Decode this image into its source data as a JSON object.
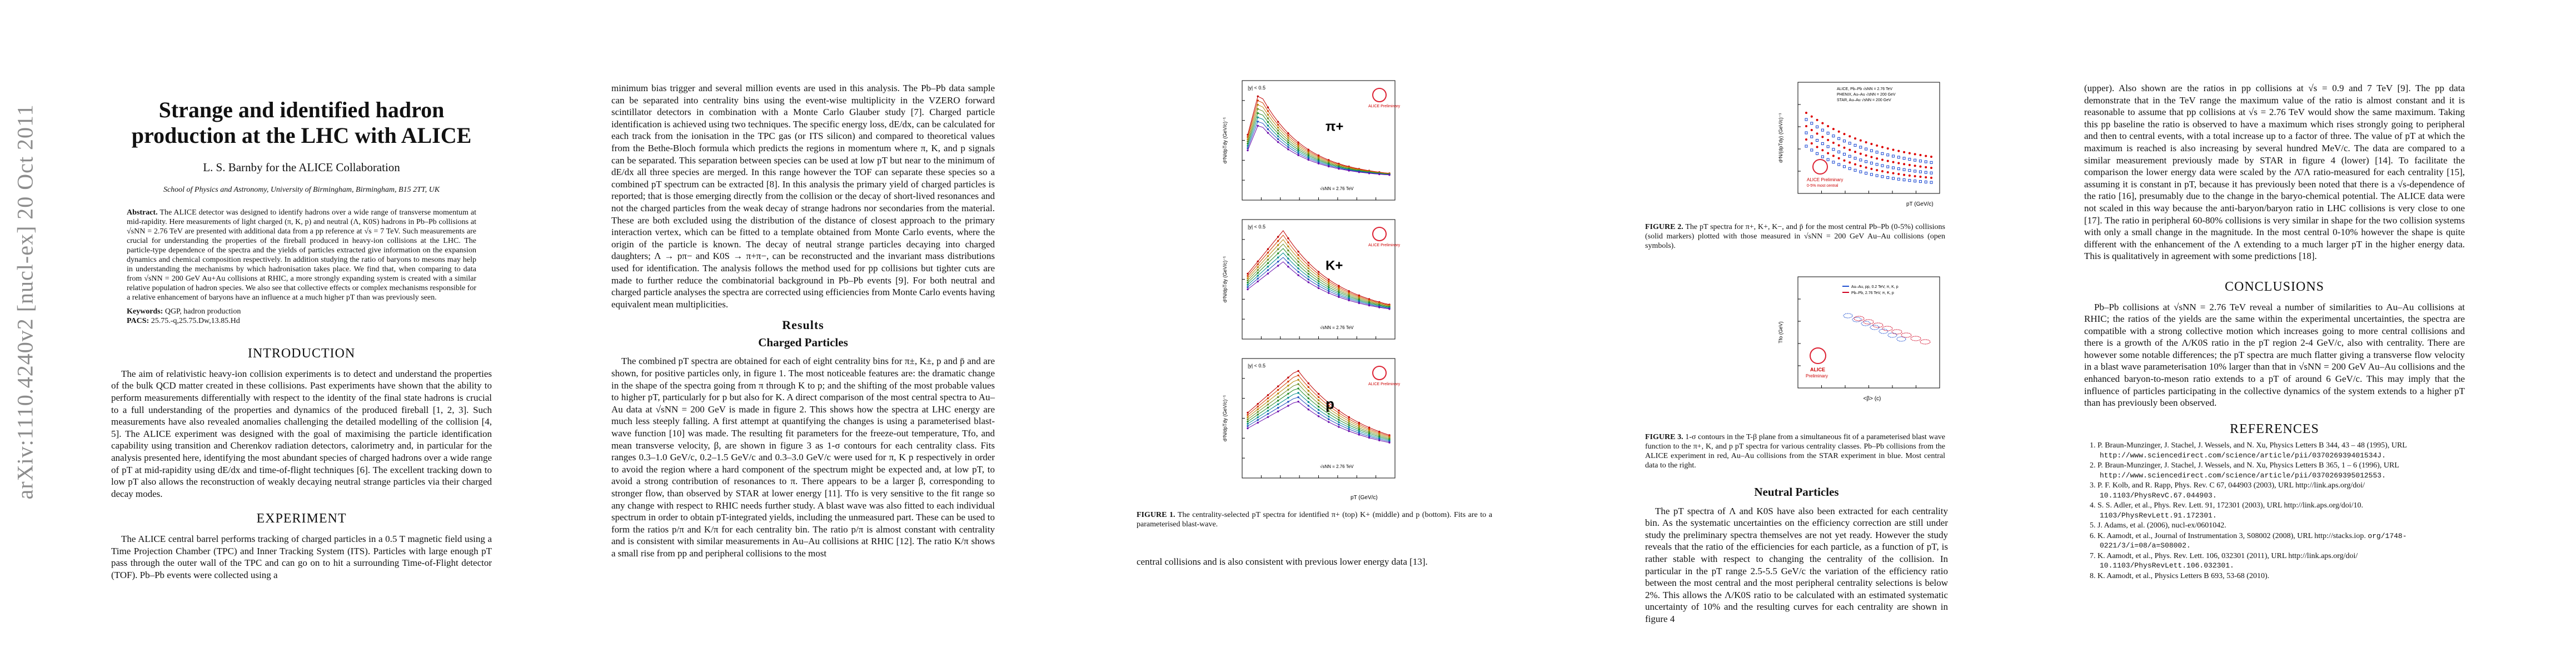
{
  "margin": {
    "arxiv_id": "arXiv:1110.4240v2  [nucl-ex]  20 Oct 2011"
  },
  "header": {
    "title": "Strange and identified hadron production at the LHC with ALICE",
    "author": "L. S. Barnby for the ALICE Collaboration",
    "affiliation": "School of Physics and Astronomy, University of Birmingham, Birmingham, B15 2TT, UK"
  },
  "abstract": {
    "label": "Abstract.",
    "text": "The ALICE detector was designed to identify hadrons over a wide range of transverse momentum at mid-rapidity. Here measurements of light charged (π, K, p) and neutral (Λ, K0S) hadrons in Pb–Pb collisions at √sNN = 2.76 TeV are presented with additional data from a pp reference at √s = 7 TeV. Such measurements are crucial for understanding the properties of the fireball produced in heavy-ion collisions at the LHC. The particle-type dependence of the spectra and the yields of particles extracted give information on the expansion dynamics and chemical composition respectively. In addition studying the ratio of baryons to mesons may help in understanding the mechanisms by which hadronisation takes place. We find that, when comparing to data from √sNN = 200 GeV Au+Au collisions at RHIC, a more strongly expanding system is created with a similar relative population of hadron species. We also see that collective effects or complex mechanisms responsible for a relative enhancement of baryons have an influence at a much higher pT than was previously seen.",
    "keywords_label": "Keywords:",
    "keywords": "QGP, hadron production",
    "pacs_label": "PACS:",
    "pacs": "25.75.-q,25.75.Dw,13.85.Hd"
  },
  "introduction": {
    "heading": "INTRODUCTION",
    "text": "The aim of relativistic heavy-ion collision experiments is to detect and understand the properties of the bulk QCD matter created in these collisions. Past experiments have shown that the ability to perform measurements differentially with respect to the identity of the final state hadrons is crucial to a full understanding of the properties and dynamics of the produced fireball [1, 2, 3]. Such measurements have also revealed anomalies challenging the detailed modelling of the collision [4, 5]. The ALICE experiment was designed with the goal of maximising the particle identification capability using transition and Cherenkov radiation detectors, calorimetry and, in particular for the analysis presented here, identifying the most abundant species of charged hadrons over a wide range of pT at mid-rapidity using dE/dx and time-of-flight techniques [6]. The excellent tracking down to low pT also allows the reconstruction of weakly decaying neutral strange particles via their charged decay modes."
  },
  "experiment": {
    "heading": "EXPERIMENT",
    "text": "The ALICE central barrel performs tracking of charged particles in a 0.5 T magnetic field using a Time Projection Chamber (TPC) and Inner Tracking System (ITS). Particles with large enough pT pass through the outer wall of the TPC and can go on to hit a surrounding Time-of-Flight detector (TOF). Pb–Pb events were collected using a"
  },
  "col2": {
    "text1": "minimum bias trigger and several million events are used in this analysis. The Pb–Pb data sample can be separated into centrality bins using the event-wise multiplicity in the VZERO forward scintillator detectors in combination with a Monte Carlo Glauber study [7]. Charged particle identification is achieved using two techniques. The specific energy loss, dE/dx, can be calculated for each track from the ionisation in the TPC gas (or ITS silicon) and compared to theoretical values from the Bethe-Bloch formula which predicts the regions in momentum where π, K, and p signals can be separated. This separation between species can be used at low pT but near to the minimum of dE/dx all three species are merged. In this range however the TOF can separate these species so a combined pT spectrum can be extracted [8]. In this analysis the primary yield of charged particles is reported; that is those emerging directly from the collision or the decay of short-lived resonances and not the charged particles from the weak decay of strange hadrons nor secondaries from the material. These are both excluded using the distribution of the distance of closest approach to the primary interaction vertex, which can be fitted to a template obtained from Monte Carlo events, where the origin of the particle is known. The decay of neutral strange particles decaying into charged daughters; Λ → pπ− and K0S → π+π−, can be reconstructed and the invariant mass distributions used for identification. The analysis follows the method used for pp collisions but tighter cuts are made to further reduce the combinatorial background in Pb–Pb events [9]. For both neutral and charged particle analyses the spectra are corrected using efficiencies from Monte Carlo events having equivalent mean multiplicities.",
    "results_heading": "Results",
    "charged_heading": "Charged Particles",
    "text2": "The combined pT spectra are obtained for each of eight centrality bins for π±, K±, p and p̄ and are shown, for positive particles only, in figure 1. The most noticeable features are: the dramatic change in the shape of the spectra going from π through K to p; and the shifting of the most probable values to higher pT, particularly for p but also for K. A direct comparison of the most central spectra to Au–Au data at √sNN = 200 GeV is made in figure 2. This shows how the spectra at LHC energy are much less steeply falling. A first attempt at quantifying the changes is using a parameterised blast-wave function [10] was made. The resulting fit parameters for the freeze-out temperature, Tfo, and mean transverse velocity, β, are shown in figure 3 as 1-σ contours for each centrality class. Fits ranges 0.3–1.0 GeV/c, 0.2–1.5 GeV/c and 0.3–3.0 GeV/c were used for π, K p respectively in order to avoid the region where a hard component of the spectrum might be expected and, at low pT, to avoid a strong contribution of resonances to π. There appears to be a larger β, corresponding to stronger flow, than observed by STAR at lower energy [11]. Tfo is very sensitive to the fit range so any change with respect to RHIC needs further study. A blast wave was also fitted to each individual spectrum in order to obtain pT-integrated yields, including the unmeasured part. These can be used to form the ratios p/π and K/π for each centrality bin. The ratio p/π is almost constant with centrality and is consistent with similar measurements in Au–Au collisions at RHIC [12]. The ratio K/π shows a small rise from pp and peripheral collisions to the most"
  },
  "figure1": {
    "panels": [
      {
        "rap": "|y| < 0.5",
        "particle": "π+",
        "energy": "√sNN = 2.76 TeV"
      },
      {
        "rap": "|y| < 0.5",
        "particle": "K+",
        "energy": "√sNN = 2.76 TeV"
      },
      {
        "rap": "|y| < 0.5",
        "particle": "p",
        "energy": "√sNN = 2.76 TeV"
      }
    ],
    "ylabel": "d²N/dpTdy (GeV/c)⁻¹",
    "xlabel": "pT (GeV/c)",
    "logo": "ALICE Preliminary",
    "caption_label": "FIGURE 1.",
    "caption": "The centrality-selected pT spectra for identified π+ (top) K+ (middle) and p (bottom). Fits are to a parameterised blast-wave."
  },
  "col3_bottom": {
    "text": "central collisions and is also consistent with previous lower energy data [13]."
  },
  "figure2": {
    "legend": [
      "ALICE, Pb–Pb √sNN = 2.76 TeV",
      "PHENIX, Au–Au √sNN = 200 GeV",
      "STAR, Au–Au √sNN = 200 GeV"
    ],
    "ylabel": "d²N/(dpTdy) (GeV/c)⁻¹",
    "xlabel": "pT (GeV/c)",
    "logo": "ALICE Preliminary",
    "logo_sub": "0-5% most central",
    "caption_label": "FIGURE 2.",
    "caption": "The pT spectra for π+, K+, K−, and p̄ for the most central Pb–Pb (0-5%) collisions (solid markers) plotted with those measured in √sNN = 200 GeV Au–Au collisions (open symbols)."
  },
  "figure3": {
    "legend": [
      "Au–Au, pp, 0.2 TeV, π, K, p",
      "Pb–Pb, 2.76 TeV, π, K, p"
    ],
    "ylabel": "Tfo (GeV)",
    "xlabel": "<β> (c)",
    "logo": "ALICE",
    "logo_sub": "Preliminary",
    "caption_label": "FIGURE 3.",
    "caption": "1-σ contours in the T-β plane from a simultaneous fit of a parameterised blast wave function to the π+, K, and p pT spectra for various centrality classes. Pb–Pb collisions from the ALICE experiment in red, Au–Au collisions from the STAR experiment in blue. Most central data to the right."
  },
  "neutral": {
    "heading": "Neutral Particles",
    "text": "The pT spectra of Λ and K0S have also been extracted for each centrality bin. As the systematic uncertainties on the efficiency correction are still under study the preliminary spectra themselves are not yet ready. However the study reveals that the ratio of the efficiencies for each particle, as a function of pT, is rather stable with respect to changing the centrality of the collision. In particular in the pT range 2.5-5.5 GeV/c the variation of the efficiency ratio between the most central and the most peripheral centrality selections is below 2%. This allows the Λ/K0S ratio to be calculated with an estimated systematic uncertainty of 10% and the resulting curves for each centrality are shown in figure 4"
  },
  "col5": {
    "text1": "(upper). Also shown are the ratios in pp collisions at √s = 0.9 and 7 TeV [9]. The pp data demonstrate that in the TeV range the maximum value of the ratio is almost constant and it is reasonable to assume that pp collisions at √s = 2.76 TeV would show the same maximum. Taking this pp baseline the ratio is observed to have a maximum which rises strongly going to peripheral and then to central events, with a total increase up to a factor of three. The value of pT at which the maximum is reached is also increasing by several hundred MeV/c. The data are compared to a similar measurement previously made by STAR in figure 4 (lower) [14]. To facilitate the comparison the lower energy data were scaled by the Λ̄/Λ ratio-measured for each centrality [15], assuming it is constant in pT, because it has previously been noted that there is a √s-dependence of the ratio [16], presumably due to the change in the baryo-chemical potential. The ALICE data were not scaled in this way because the anti-baryon/baryon ratio in LHC collisions is very close to one [17]. The ratio in peripheral 60-80% collisions is very similar in shape for the two collision systems with only a small change in the magnitude. In the most central 0-10% however the shape is quite different with the enhancement of the Λ extending to a much larger pT in the higher energy data. This is qualitatively in agreement with some predictions [18].",
    "conclusions_heading": "CONCLUSIONS",
    "conclusions": "Pb–Pb collisions at √sNN = 2.76 TeV reveal a number of similarities to Au–Au collisions at RHIC; the ratios of the yields are the same within the experimental uncertainties, the spectra are compatible with a strong collective motion which increases going to more central collisions and there is a growth of the Λ/K0S ratio in the pT region 2-4 GeV/c, also with centrality. There are however some notable differences; the pT spectra are much flatter giving a transverse flow velocity in a blast wave parameterisation 10% larger than that in √sNN = 200 GeV Au–Au collisions and the enhanced baryon-to-meson ratio extends to a pT of around 6 GeV/c. This may imply that the influence of particles participating in the collective dynamics of the system extends to a higher pT than has previously been observed.",
    "references_heading": "REFERENCES",
    "references": [
      {
        "n": "1.",
        "text": "P. Braun-Munzinger, J. Stachel, J. Wessels, and N. Xu, Physics Letters B 344, 43 – 48 (1995), URL",
        "url": "http://www.sciencedirect.com/science/article/pii/037026939401534J."
      },
      {
        "n": "2.",
        "text": "P. Braun-Munzinger, J. Stachel, J. Wessels, and N. Xu, Physics Letters B 365, 1 – 6 (1996), URL",
        "url": "http://www.sciencedirect.com/science/article/pii/0370269395012553."
      },
      {
        "n": "3.",
        "text": "P. F. Kolb, and R. Rapp, Phys. Rev. C 67, 044903 (2003), URL http://link.aps.org/doi/",
        "url": "10.1103/PhysRevC.67.044903."
      },
      {
        "n": "4.",
        "text": "S. S. Adler, et al., Phys. Rev. Lett. 91, 172301 (2003), URL http://link.aps.org/doi/10.",
        "url": "1103/PhysRevLett.91.172301."
      },
      {
        "n": "5.",
        "text": "J. Adams, et al. (2006), nucl-ex/0601042.",
        "url": ""
      },
      {
        "n": "6.",
        "text": "K. Aamodt, et al., Journal of Instrumentation 3, S08002 (2008), URL http://stacks.iop.",
        "url": "org/1748-0221/3/i=08/a=S08002."
      },
      {
        "n": "7.",
        "text": "K. Aamodt, et al., Phys. Rev. Lett. 106, 032301 (2011), URL http://link.aps.org/doi/",
        "url": "10.1103/PhysRevLett.106.032301."
      },
      {
        "n": "8.",
        "text": "K. Aamodt, et al., Physics Letters B 693, 53-68 (2010).",
        "url": ""
      }
    ]
  }
}
